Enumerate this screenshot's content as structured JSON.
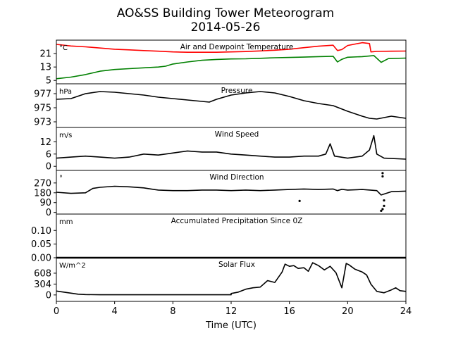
{
  "figure": {
    "title": "AO&SS Building Tower Meteorogram",
    "subtitle": "2014-05-26",
    "xlabel": "Time (UTC)"
  },
  "chart_data": {
    "type": "line",
    "x_range": [
      0,
      24
    ],
    "x_ticks": [
      0,
      4,
      8,
      12,
      16,
      20,
      24
    ],
    "panels": [
      {
        "id": "temperature",
        "title": "Air and Dewpoint Temperature",
        "unit": "°C",
        "ylim": [
          3,
          29
        ],
        "yticks": [
          5,
          13,
          21
        ],
        "series": [
          {
            "color": "#ff0000",
            "points": [
              [
                0,
                26.5
              ],
              [
                1,
                25.5
              ],
              [
                2,
                25
              ],
              [
                3,
                24.3
              ],
              [
                4,
                23.6
              ],
              [
                5,
                23.2
              ],
              [
                6,
                22.8
              ],
              [
                7,
                22.4
              ],
              [
                8,
                22
              ],
              [
                9,
                21.8
              ],
              [
                10,
                21.8
              ],
              [
                11,
                21.8
              ],
              [
                12,
                22
              ],
              [
                13,
                22.2
              ],
              [
                14,
                22.6
              ],
              [
                15,
                23
              ],
              [
                16,
                23.6
              ],
              [
                17,
                24.5
              ],
              [
                18,
                25.4
              ],
              [
                19,
                26
              ],
              [
                19.3,
                22.8
              ],
              [
                19.6,
                23.4
              ],
              [
                20,
                25.8
              ],
              [
                21,
                27.5
              ],
              [
                21.5,
                27
              ],
              [
                21.6,
                22
              ],
              [
                22,
                22.3
              ],
              [
                23,
                22.4
              ],
              [
                24,
                22.5
              ]
            ]
          },
          {
            "color": "#008000",
            "points": [
              [
                0,
                6
              ],
              [
                1,
                7
              ],
              [
                2,
                8.5
              ],
              [
                3,
                10.5
              ],
              [
                4,
                11.5
              ],
              [
                5,
                12
              ],
              [
                6,
                12.5
              ],
              [
                7,
                13
              ],
              [
                7.5,
                13.5
              ],
              [
                8,
                14.8
              ],
              [
                9,
                16
              ],
              [
                10,
                17
              ],
              [
                11,
                17.5
              ],
              [
                12,
                17.8
              ],
              [
                13,
                17.9
              ],
              [
                14,
                18.2
              ],
              [
                15,
                18.5
              ],
              [
                16,
                18.7
              ],
              [
                17,
                18.9
              ],
              [
                18,
                19.2
              ],
              [
                19,
                19.4
              ],
              [
                19.3,
                16
              ],
              [
                19.6,
                17.6
              ],
              [
                20,
                18.8
              ],
              [
                21,
                19.2
              ],
              [
                21.8,
                19.8
              ],
              [
                22.3,
                15.8
              ],
              [
                22.8,
                18
              ],
              [
                24,
                18.3
              ]
            ]
          }
        ]
      },
      {
        "id": "pressure",
        "title": "Pressure",
        "unit": "hPa",
        "ylim": [
          972.2,
          978.4
        ],
        "yticks": [
          973,
          975,
          977
        ],
        "series": [
          {
            "color": "#000000",
            "points": [
              [
                0,
                976.2
              ],
              [
                1,
                976.3
              ],
              [
                2,
                977
              ],
              [
                3,
                977.3
              ],
              [
                4,
                977.2
              ],
              [
                5,
                977
              ],
              [
                6,
                976.8
              ],
              [
                7,
                976.5
              ],
              [
                8,
                976.3
              ],
              [
                9,
                976.1
              ],
              [
                10,
                975.9
              ],
              [
                10.5,
                975.8
              ],
              [
                11,
                976.2
              ],
              [
                12,
                976.8
              ],
              [
                13,
                977.1
              ],
              [
                14,
                977.3
              ],
              [
                15,
                977.1
              ],
              [
                16,
                976.6
              ],
              [
                17,
                976
              ],
              [
                18,
                975.6
              ],
              [
                19,
                975.3
              ],
              [
                20,
                974.5
              ],
              [
                21,
                973.8
              ],
              [
                21.5,
                973.5
              ],
              [
                22,
                973.4
              ],
              [
                23,
                973.8
              ],
              [
                24,
                973.5
              ]
            ]
          }
        ]
      },
      {
        "id": "wind_speed",
        "title": "Wind Speed",
        "unit": "m/s",
        "ylim": [
          -2,
          19
        ],
        "yticks": [
          0,
          6,
          12
        ],
        "series": [
          {
            "color": "#000000",
            "points": [
              [
                0,
                4
              ],
              [
                1,
                4.5
              ],
              [
                2,
                5
              ],
              [
                3,
                4.5
              ],
              [
                4,
                4
              ],
              [
                5,
                4.5
              ],
              [
                6,
                6
              ],
              [
                7,
                5.5
              ],
              [
                8,
                6.5
              ],
              [
                9,
                7.5
              ],
              [
                10,
                7
              ],
              [
                11,
                7
              ],
              [
                12,
                6
              ],
              [
                13,
                5.5
              ],
              [
                14,
                5
              ],
              [
                15,
                4.5
              ],
              [
                16,
                4.5
              ],
              [
                17,
                5
              ],
              [
                18,
                5
              ],
              [
                18.5,
                6
              ],
              [
                18.8,
                11
              ],
              [
                19.1,
                5
              ],
              [
                20,
                4
              ],
              [
                21,
                5
              ],
              [
                21.5,
                8
              ],
              [
                21.8,
                15
              ],
              [
                22,
                6
              ],
              [
                22.5,
                4
              ],
              [
                24,
                3.5
              ]
            ]
          }
        ]
      },
      {
        "id": "wind_direction",
        "title": "Wind Direction",
        "unit": "°",
        "ylim": [
          -15,
          385
        ],
        "yticks": [
          0,
          90,
          180,
          270
        ],
        "series": [
          {
            "color": "#000000",
            "points": [
              [
                0,
                185
              ],
              [
                1,
                175
              ],
              [
                2,
                180
              ],
              [
                2.5,
                220
              ],
              [
                3,
                230
              ],
              [
                4,
                240
              ],
              [
                5,
                235
              ],
              [
                6,
                225
              ],
              [
                6.5,
                215
              ],
              [
                7,
                205
              ],
              [
                8,
                200
              ],
              [
                9,
                200
              ],
              [
                10,
                205
              ],
              [
                11,
                205
              ],
              [
                12,
                200
              ],
              [
                13,
                205
              ],
              [
                14,
                200
              ],
              [
                15,
                205
              ],
              [
                16,
                210
              ],
              [
                17,
                215
              ],
              [
                18,
                210
              ],
              [
                19,
                215
              ],
              [
                19.3,
                200
              ],
              [
                19.6,
                212
              ],
              [
                20,
                205
              ],
              [
                21,
                210
              ],
              [
                22,
                200
              ],
              [
                22.3,
                160
              ],
              [
                23,
                190
              ],
              [
                24,
                195
              ]
            ]
          }
        ],
        "scatter": [
          [
            16.7,
            105
          ],
          [
            22.4,
            360
          ],
          [
            22.4,
            330
          ],
          [
            22.5,
            110
          ],
          [
            22.5,
            60
          ],
          [
            22.4,
            30
          ],
          [
            22.3,
            15
          ]
        ]
      },
      {
        "id": "precipitation",
        "title": "Accumulated Precipitation Since 0Z",
        "unit": "mm",
        "ylim": [
          0,
          0.16
        ],
        "yticks": [
          0,
          0.05,
          0.1
        ],
        "ytick_labels": [
          "0.00",
          "0.05",
          "0.10"
        ],
        "series": [
          {
            "color": "#000000",
            "points": [
              [
                0,
                0
              ],
              [
                24,
                0
              ]
            ]
          }
        ]
      },
      {
        "id": "solar_flux",
        "title": "Solar Flux",
        "unit": "W/m^2",
        "ylim": [
          -180,
          1040
        ],
        "yticks": [
          0,
          304,
          608
        ],
        "series": [
          {
            "color": "#000000",
            "points": [
              [
                0,
                110
              ],
              [
                0.5,
                80
              ],
              [
                1,
                50
              ],
              [
                1.5,
                20
              ],
              [
                2,
                10
              ],
              [
                3,
                5
              ],
              [
                12,
                5
              ],
              [
                12,
                40
              ],
              [
                12.5,
                80
              ],
              [
                13,
                160
              ],
              [
                13.5,
                200
              ],
              [
                14,
                220
              ],
              [
                14.5,
                400
              ],
              [
                15,
                350
              ],
              [
                15.5,
                640
              ],
              [
                15.7,
                860
              ],
              [
                16,
                800
              ],
              [
                16.3,
                820
              ],
              [
                16.6,
                740
              ],
              [
                17,
                760
              ],
              [
                17.3,
                660
              ],
              [
                17.6,
                900
              ],
              [
                18,
                820
              ],
              [
                18.4,
                700
              ],
              [
                18.8,
                800
              ],
              [
                19.2,
                620
              ],
              [
                19.6,
                200
              ],
              [
                19.9,
                880
              ],
              [
                20.1,
                840
              ],
              [
                20.5,
                720
              ],
              [
                21,
                640
              ],
              [
                21.3,
                560
              ],
              [
                21.6,
                300
              ],
              [
                22,
                100
              ],
              [
                22.5,
                60
              ],
              [
                23,
                140
              ],
              [
                23.3,
                200
              ],
              [
                23.6,
                120
              ],
              [
                24,
                100
              ]
            ]
          }
        ]
      }
    ]
  }
}
